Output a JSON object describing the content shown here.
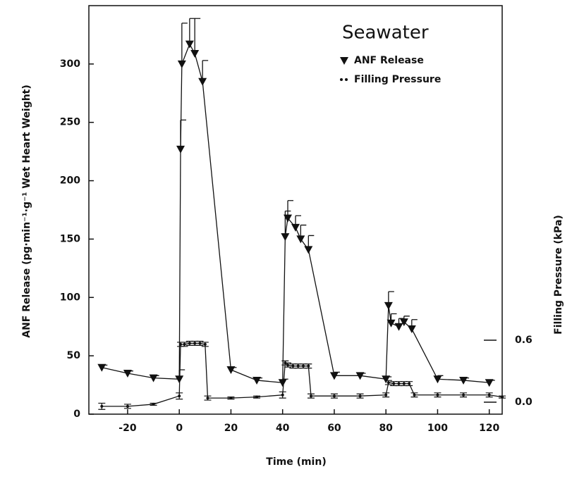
{
  "chart_data": {
    "type": "line",
    "title": "Seawater",
    "xlabel": "Time (min)",
    "ylabel": "ANF Release (pg·min⁻¹·g⁻¹ Wet Heart Weight)",
    "y2label": "Filling Pressure (kPa)",
    "xlim": [
      -35,
      125
    ],
    "ylim": [
      0,
      350
    ],
    "y2lim": [
      -0.116,
      3.84
    ],
    "xticks": [
      -20,
      0,
      20,
      40,
      60,
      80,
      100,
      120
    ],
    "yticks": [
      0,
      50,
      100,
      150,
      200,
      250,
      300
    ],
    "y2ticks": [
      {
        "value": 0,
        "label": "0.0"
      },
      0.6
    ],
    "series": [
      {
        "name": "ANF Release",
        "color": "#111111",
        "marker": "triangle-down",
        "x": [
          -30,
          -20,
          -10,
          0,
          0.5,
          1,
          4,
          6,
          9,
          20,
          30,
          40,
          41,
          42,
          45,
          47,
          50,
          60,
          70,
          80,
          81,
          82,
          85,
          87,
          90,
          100,
          110,
          120
        ],
        "values": [
          40,
          35,
          31,
          30,
          227,
          300,
          317,
          309,
          285,
          38,
          29,
          27,
          152,
          168,
          160,
          150,
          141,
          33,
          33,
          30,
          93,
          78,
          75,
          79,
          73,
          30,
          29,
          27
        ],
        "errors": [
          2,
          2,
          2,
          8,
          25,
          35,
          22,
          30,
          18,
          2,
          2,
          3,
          22,
          15,
          10,
          12,
          12,
          3,
          2,
          2,
          12,
          8,
          7,
          5,
          8,
          3,
          2,
          2
        ]
      },
      {
        "name": "Filling Pressure",
        "color": "#111111",
        "marker": "dot",
        "axis": "y2",
        "x": [
          -30,
          -20,
          -10,
          0,
          0.5,
          2,
          4,
          6,
          8,
          10,
          11,
          20,
          30,
          40,
          41,
          42,
          44,
          46,
          48,
          50,
          51,
          60,
          70,
          80,
          81,
          83,
          85,
          87,
          89,
          91,
          100,
          110,
          120,
          125
        ],
        "values": [
          -0.04,
          -0.04,
          -0.02,
          0.06,
          0.56,
          0.56,
          0.57,
          0.57,
          0.57,
          0.56,
          0.04,
          0.04,
          0.05,
          0.07,
          0.38,
          0.36,
          0.35,
          0.35,
          0.35,
          0.35,
          0.06,
          0.06,
          0.06,
          0.07,
          0.19,
          0.18,
          0.18,
          0.18,
          0.18,
          0.07,
          0.07,
          0.07,
          0.07,
          0.05
        ],
        "errors": [
          0.03,
          0.02,
          0.01,
          0.03,
          0.02,
          0.02,
          0.02,
          0.02,
          0.02,
          0.02,
          0.02,
          0.01,
          0.01,
          0.03,
          0.02,
          0.02,
          0.02,
          0.02,
          0.02,
          0.02,
          0.02,
          0.02,
          0.02,
          0.02,
          0.02,
          0.02,
          0.02,
          0.02,
          0.02,
          0.02,
          0.02,
          0.02,
          0.02,
          0.01
        ]
      }
    ],
    "legend": "upper right"
  }
}
